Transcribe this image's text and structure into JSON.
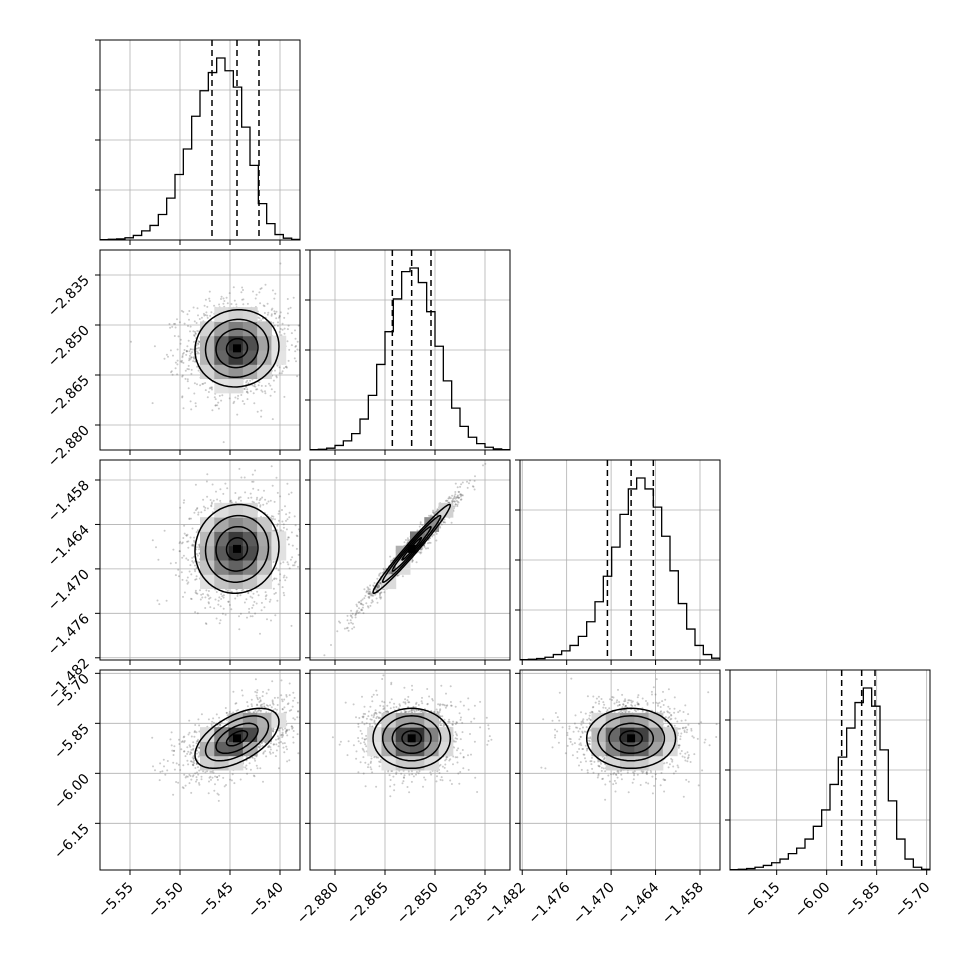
{
  "chart_data": {
    "type": "corner",
    "parameters": [
      {
        "range": [
          -5.58,
          -5.38
        ],
        "ticks": [
          -5.55,
          -5.5,
          -5.45,
          -5.4
        ],
        "tick_labels": [
          "−5.55",
          "−5.50",
          "−5.45",
          "−5.40"
        ],
        "quantiles": [
          -5.468,
          -5.443,
          -5.421
        ],
        "mean": -5.443,
        "sd": 0.021
      },
      {
        "range": [
          -2.8875,
          -2.8275
        ],
        "ticks": [
          -2.88,
          -2.865,
          -2.85,
          -2.835
        ],
        "tick_labels": [
          "−2.880",
          "−2.865",
          "−2.850",
          "−2.835"
        ],
        "quantiles": [
          -2.8628,
          -2.857,
          -2.8512
        ],
        "mean": -2.857,
        "sd": 0.0058
      },
      {
        "range": [
          -1.4823,
          -1.4553
        ],
        "ticks": [
          -1.482,
          -1.476,
          -1.47,
          -1.464,
          -1.458
        ],
        "tick_labels": [
          "−1.482",
          "−1.476",
          "−1.470",
          "−1.464",
          "−1.458"
        ],
        "quantiles": [
          -1.4705,
          -1.4673,
          -1.4643
        ],
        "mean": -1.4673,
        "sd": 0.003
      },
      {
        "range": [
          -6.29,
          -5.69
        ],
        "ticks": [
          -6.15,
          -6.0,
          -5.85,
          -5.7
        ],
        "tick_labels": [
          "−6.15",
          "−6.00",
          "−5.85",
          "−5.70"
        ],
        "quantiles": [
          -5.955,
          -5.895,
          -5.855
        ],
        "mean": -5.895,
        "sd": 0.045
      }
    ],
    "correlations": [
      {
        "pair": [
          0,
          1
        ],
        "rho": 0.05
      },
      {
        "pair": [
          0,
          2
        ],
        "rho": 0.05
      },
      {
        "pair": [
          0,
          3
        ],
        "rho": 0.55
      },
      {
        "pair": [
          1,
          2
        ],
        "rho": 0.98
      },
      {
        "pair": [
          1,
          3
        ],
        "rho": 0.0
      },
      {
        "pair": [
          2,
          3
        ],
        "rho": 0.0
      }
    ],
    "histograms": [
      [
        0.002,
        0.004,
        0.006,
        0.012,
        0.025,
        0.05,
        0.08,
        0.14,
        0.23,
        0.36,
        0.5,
        0.68,
        0.82,
        0.92,
        1.0,
        0.93,
        0.84,
        0.62,
        0.41,
        0.2,
        0.09,
        0.03,
        0.01,
        0.003
      ],
      [
        0.002,
        0.004,
        0.01,
        0.025,
        0.05,
        0.09,
        0.17,
        0.3,
        0.47,
        0.65,
        0.83,
        0.98,
        1.0,
        0.92,
        0.76,
        0.57,
        0.38,
        0.23,
        0.13,
        0.07,
        0.035,
        0.015,
        0.006,
        0.002
      ],
      [
        0.002,
        0.004,
        0.008,
        0.015,
        0.03,
        0.05,
        0.08,
        0.13,
        0.21,
        0.32,
        0.46,
        0.62,
        0.8,
        0.94,
        1.0,
        0.94,
        0.84,
        0.68,
        0.49,
        0.31,
        0.17,
        0.08,
        0.03,
        0.01
      ],
      [
        0.002,
        0.004,
        0.008,
        0.015,
        0.025,
        0.04,
        0.06,
        0.09,
        0.12,
        0.17,
        0.24,
        0.33,
        0.47,
        0.62,
        0.78,
        0.92,
        1.0,
        0.9,
        0.66,
        0.38,
        0.17,
        0.06,
        0.015,
        0.004
      ]
    ],
    "grid": true,
    "legend": "none"
  }
}
